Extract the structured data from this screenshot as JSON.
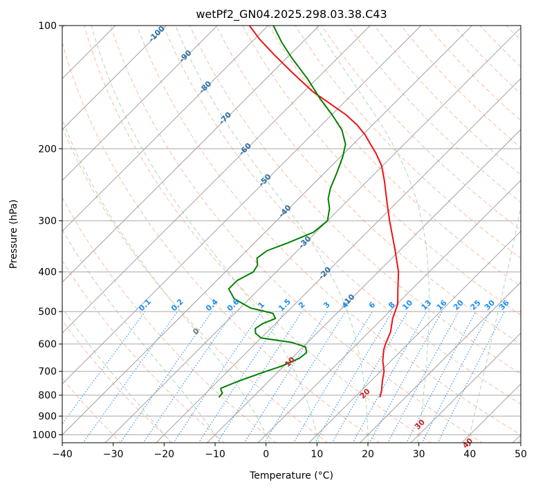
{
  "chart_data": {
    "type": "line",
    "title": "wetPf2_GN04.2025.298.03.38.C43",
    "xlabel": "Temperature (°C)",
    "ylabel": "Pressure (hPa)",
    "xlim": [
      -40,
      50
    ],
    "ylim": [
      1050,
      100
    ],
    "y_scale": "log",
    "x_ticks": [
      "−40",
      "−30",
      "−20",
      "−10",
      "0",
      "10",
      "20",
      "30",
      "40",
      "50"
    ],
    "x_tick_values": [
      -40,
      -30,
      -20,
      -10,
      0,
      10,
      20,
      30,
      40,
      50
    ],
    "y_ticks": [
      "100",
      "200",
      "300",
      "400",
      "500",
      "600",
      "700",
      "800",
      "900",
      "1000"
    ],
    "y_tick_values": [
      100,
      200,
      300,
      400,
      500,
      600,
      700,
      800,
      900,
      1000
    ],
    "grid": true,
    "skew": true,
    "series": [
      {
        "role": "temperature",
        "color": "#ee1111",
        "pressure": [
          810,
          780,
          740,
          700,
          660,
          620,
          600,
          560,
          520,
          480,
          440,
          400,
          350,
          300,
          270,
          240,
          220,
          205,
          195,
          185,
          175,
          165,
          155,
          145,
          130,
          118,
          108,
          100
        ],
        "values": [
          15.0,
          14.0,
          12.3,
          10.7,
          8.4,
          6.4,
          5.6,
          4.2,
          2.0,
          0.2,
          -2.8,
          -6.0,
          -11.4,
          -17.8,
          -22.0,
          -26.6,
          -30.2,
          -33.8,
          -36.6,
          -39.5,
          -43.0,
          -47.3,
          -52.6,
          -58.3,
          -66.2,
          -73.0,
          -79.0,
          -83.7
        ]
      },
      {
        "role": "dewpoint",
        "color": "#007f00",
        "pressure": [
          810,
          790,
          780,
          770,
          740,
          700,
          680,
          650,
          630,
          610,
          595,
          580,
          565,
          550,
          535,
          520,
          505,
          490,
          465,
          440,
          420,
          400,
          385,
          370,
          355,
          340,
          320,
          300,
          280,
          265,
          250,
          230,
          210,
          195,
          180,
          165,
          150,
          135,
          120,
          110,
          100
        ],
        "values": [
          -16.6,
          -16.8,
          -17.5,
          -18.0,
          -16.0,
          -12.5,
          -10.5,
          -8.5,
          -8.2,
          -9.5,
          -13.0,
          -20.0,
          -22.0,
          -23.0,
          -22.5,
          -21.0,
          -22.5,
          -28.0,
          -33.0,
          -36.0,
          -36.0,
          -34.5,
          -35.0,
          -36.5,
          -36.0,
          -33.5,
          -30.5,
          -30.0,
          -32.0,
          -34.2,
          -35.8,
          -37.5,
          -39.5,
          -41.5,
          -45.0,
          -50.0,
          -55.8,
          -61.8,
          -69.0,
          -74.0,
          -79.0
        ]
      }
    ],
    "isotherm_labels": [
      "-100",
      "-90",
      "-80",
      "-70",
      "-60",
      "-50",
      "-40",
      "-30",
      "-20",
      "-10"
    ],
    "isotherm_label_values": [
      -100,
      -90,
      -80,
      -70,
      -60,
      -50,
      -40,
      -30,
      -20,
      -10
    ],
    "mixing_ratio_labels": [
      "0.1",
      "0.2",
      "0.4",
      "0.6",
      "1",
      "1.5",
      "2",
      "3",
      "4",
      "6",
      "8",
      "10",
      "13",
      "16",
      "20",
      "25",
      "30",
      "36"
    ],
    "mixing_ratio_values": [
      0.1,
      0.2,
      0.4,
      0.6,
      1,
      1.5,
      2,
      3,
      4,
      6,
      8,
      10,
      13,
      16,
      20,
      25,
      30,
      36
    ],
    "moist_adiabat_labels": [
      "0",
      "10",
      "20",
      "30",
      "40"
    ],
    "moist_adiabat_values": [
      0,
      10,
      20,
      30,
      40
    ],
    "colors": {
      "isotherm_label": "#2f6fa8",
      "mixing_ratio": "#1f8ff0",
      "moist_adiabat_label_cold": "#777777",
      "moist_adiabat_label": "#cc2222",
      "dry_adiabat": "#f4a582",
      "moist_adiabat": "#9ccc9c",
      "gridline": "#a8a8a8",
      "skewed_isotherm": "#a0a0a0"
    }
  }
}
